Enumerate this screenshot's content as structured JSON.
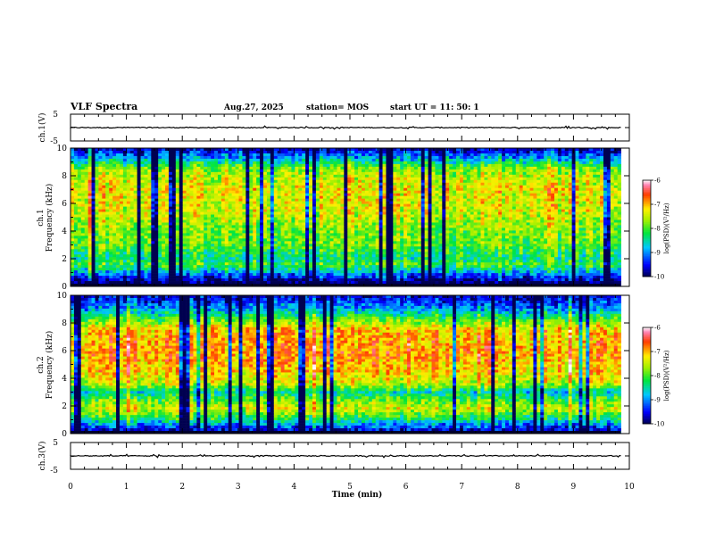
{
  "header": {
    "title": "VLF Spectra",
    "date": "Aug.27, 2025",
    "station": "station= MOS",
    "start_ut": "start  UT  =   11: 50: 1"
  },
  "chart_data": [
    {
      "type": "line",
      "name": "ch1-waveform",
      "ylabel": "ch.1(V)",
      "ylim": [
        -5,
        5
      ],
      "yticks": [
        "5",
        "-5"
      ],
      "baseline": 0,
      "xlim": [
        0,
        10
      ]
    },
    {
      "type": "heatmap",
      "name": "ch1-spectrogram",
      "ylabel": "ch.1\nFrequency (kHz)",
      "ylabel_line1": "ch.1",
      "ylabel_line2": "Frequency (kHz)",
      "ylim": [
        0,
        10
      ],
      "yticks": [
        "0",
        "2",
        "4",
        "6",
        "8",
        "10"
      ],
      "xlim": [
        0,
        9.85
      ],
      "colorbar": {
        "label": "log(PSD)(V²/Hz)",
        "range": [
          -10,
          -6
        ],
        "ticks": [
          "-6",
          "-7",
          "-8",
          "-9",
          "-10"
        ]
      },
      "band_profile": [
        [
          0,
          -9.0
        ],
        [
          0.3,
          -10.0
        ],
        [
          1.2,
          -8.6
        ],
        [
          1.6,
          -8.0
        ],
        [
          2.0,
          -8.4
        ],
        [
          3.0,
          -7.9
        ],
        [
          4.0,
          -7.8
        ],
        [
          5.5,
          -7.4
        ],
        [
          7.0,
          -7.3
        ],
        [
          8.5,
          -7.7
        ],
        [
          9.2,
          -8.8
        ],
        [
          10,
          -9.8
        ]
      ]
    },
    {
      "type": "heatmap",
      "name": "ch2-spectrogram",
      "ylabel": "ch.2\nFrequency (kHz)",
      "ylabel_line1": "ch.2",
      "ylabel_line2": "Frequency (kHz)",
      "ylim": [
        0,
        10
      ],
      "yticks": [
        "0",
        "2",
        "4",
        "6",
        "8",
        "10"
      ],
      "xlim": [
        0,
        9.85
      ],
      "colorbar": {
        "label": "log(PSD)(V²/Hz)",
        "range": [
          -10,
          -6
        ],
        "ticks": [
          "-6",
          "-7",
          "-8",
          "-9",
          "-10"
        ]
      },
      "band_profile": [
        [
          0,
          -8.8
        ],
        [
          0.3,
          -9.6
        ],
        [
          1.0,
          -8.4
        ],
        [
          1.8,
          -7.4
        ],
        [
          2.3,
          -7.8
        ],
        [
          3.0,
          -8.6
        ],
        [
          3.5,
          -7.6
        ],
        [
          4.5,
          -7.1
        ],
        [
          6.0,
          -6.9
        ],
        [
          7.5,
          -7.1
        ],
        [
          8.2,
          -7.9
        ],
        [
          9.0,
          -8.9
        ],
        [
          10,
          -9.7
        ]
      ]
    },
    {
      "type": "line",
      "name": "ch3-waveform",
      "ylabel": "ch.3(V)",
      "ylim": [
        -5,
        5
      ],
      "yticks": [
        "5",
        "-5"
      ],
      "baseline": 0,
      "xlim": [
        0,
        10
      ]
    }
  ],
  "x_axis": {
    "label": "Time  (min)",
    "range": [
      0,
      10
    ],
    "ticks": [
      "0",
      "1",
      "2",
      "3",
      "4",
      "5",
      "6",
      "7",
      "8",
      "9",
      "10"
    ]
  },
  "colors": {
    "background": "#ffffff",
    "axis": "#000000"
  }
}
